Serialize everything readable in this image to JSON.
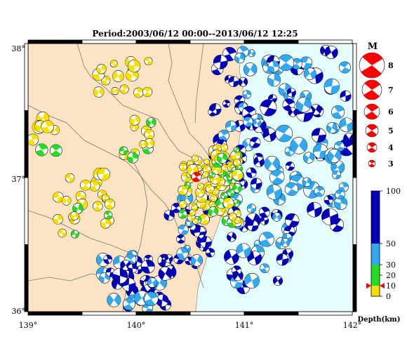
{
  "title": "Period:2003/06/12 00:00--2013/06/12 12:25",
  "axes": {
    "lon_min": 139,
    "lon_max": 142,
    "lat_min": 36,
    "lat_max": 38,
    "x_ticks": [
      "139°",
      "140°",
      "141°",
      "142°"
    ],
    "y_ticks": [
      "38°",
      "37°",
      "36°"
    ]
  },
  "colors": {
    "land": "#fbe3c4",
    "sea": "#e4fdfd",
    "boundary": "#7a7a7a",
    "coast": "#9a9a9a",
    "shallow": "#f7e000",
    "mid": "#22dd22",
    "deep": "#33a8ee",
    "deepest": "#0000bb",
    "mainshock": "#ff0000"
  },
  "magnitude_legend": {
    "label": "M",
    "items": [
      "8",
      "7",
      "6",
      "5",
      "4",
      "3"
    ]
  },
  "depth_legend": {
    "label": "Depth(km)",
    "ticks": [
      "100",
      "50",
      "30",
      "20",
      "10",
      "0"
    ],
    "bands": [
      {
        "from": 0,
        "to": 10,
        "color": "#f7e000"
      },
      {
        "from": 10,
        "to": 30,
        "color": "#22dd22"
      },
      {
        "from": 30,
        "to": 50,
        "color": "#33a8ee"
      },
      {
        "from": 50,
        "to": 100,
        "color": "#0000bb"
      }
    ],
    "marker_depth": 10
  }
}
